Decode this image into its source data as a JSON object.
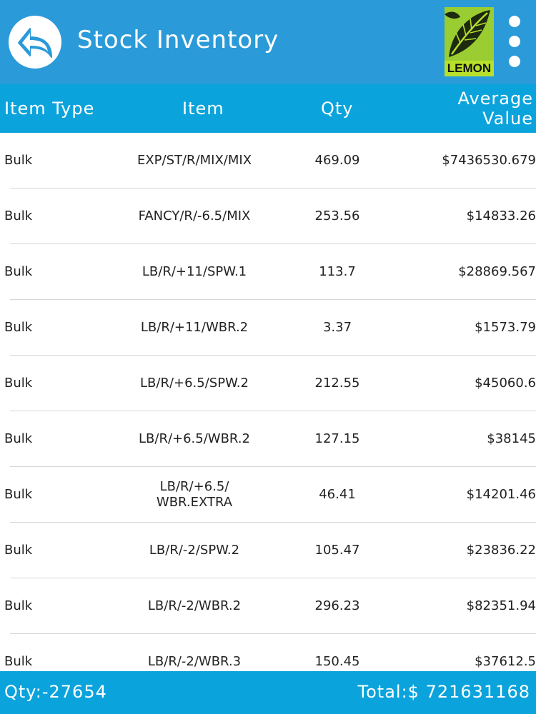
{
  "header": {
    "title": "Stock Inventory",
    "logo_text": "LEMON",
    "icons": {
      "back": "back-arrow-icon",
      "menu": "more-vertical-icon"
    },
    "colors": {
      "header_bg": "#2b9ad8",
      "subheader_bg": "#0aa3dc",
      "logo_green": "#9acd32"
    }
  },
  "columns": {
    "item_type": "Item Type",
    "item": "Item",
    "qty": "Qty",
    "average_value_line1": "Average",
    "average_value_line2": "Value"
  },
  "rows": [
    {
      "type": "Bulk",
      "item": "EXP/ST/R/MIX/MIX",
      "qty": "469.09",
      "value": "$7436530.679"
    },
    {
      "type": "Bulk",
      "item": "FANCY/R/-6.5/MIX",
      "qty": "253.56",
      "value": "$14833.26"
    },
    {
      "type": "Bulk",
      "item": "LB/R/+11/SPW.1",
      "qty": "113.7",
      "value": "$28869.567"
    },
    {
      "type": "Bulk",
      "item": "LB/R/+11/WBR.2",
      "qty": "3.37",
      "value": "$1573.79"
    },
    {
      "type": "Bulk",
      "item": "LB/R/+6.5/SPW.2",
      "qty": "212.55",
      "value": "$45060.6"
    },
    {
      "type": "Bulk",
      "item": "LB/R/+6.5/WBR.2",
      "qty": "127.15",
      "value": "$38145"
    },
    {
      "type": "Bulk",
      "item": "LB/R/+6.5/ WBR.EXTRA",
      "qty": "46.41",
      "value": "$14201.46"
    },
    {
      "type": "Bulk",
      "item": "LB/R/-2/SPW.2",
      "qty": "105.47",
      "value": "$23836.22"
    },
    {
      "type": "Bulk",
      "item": "LB/R/-2/WBR.2",
      "qty": "296.23",
      "value": "$82351.94"
    },
    {
      "type": "Bulk",
      "item": "LB/R/-2/WBR.3",
      "qty": "150.45",
      "value": "$37612.5"
    }
  ],
  "footer": {
    "qty_total": "Qty:-27654",
    "value_total": "Total:$ 721631168"
  }
}
